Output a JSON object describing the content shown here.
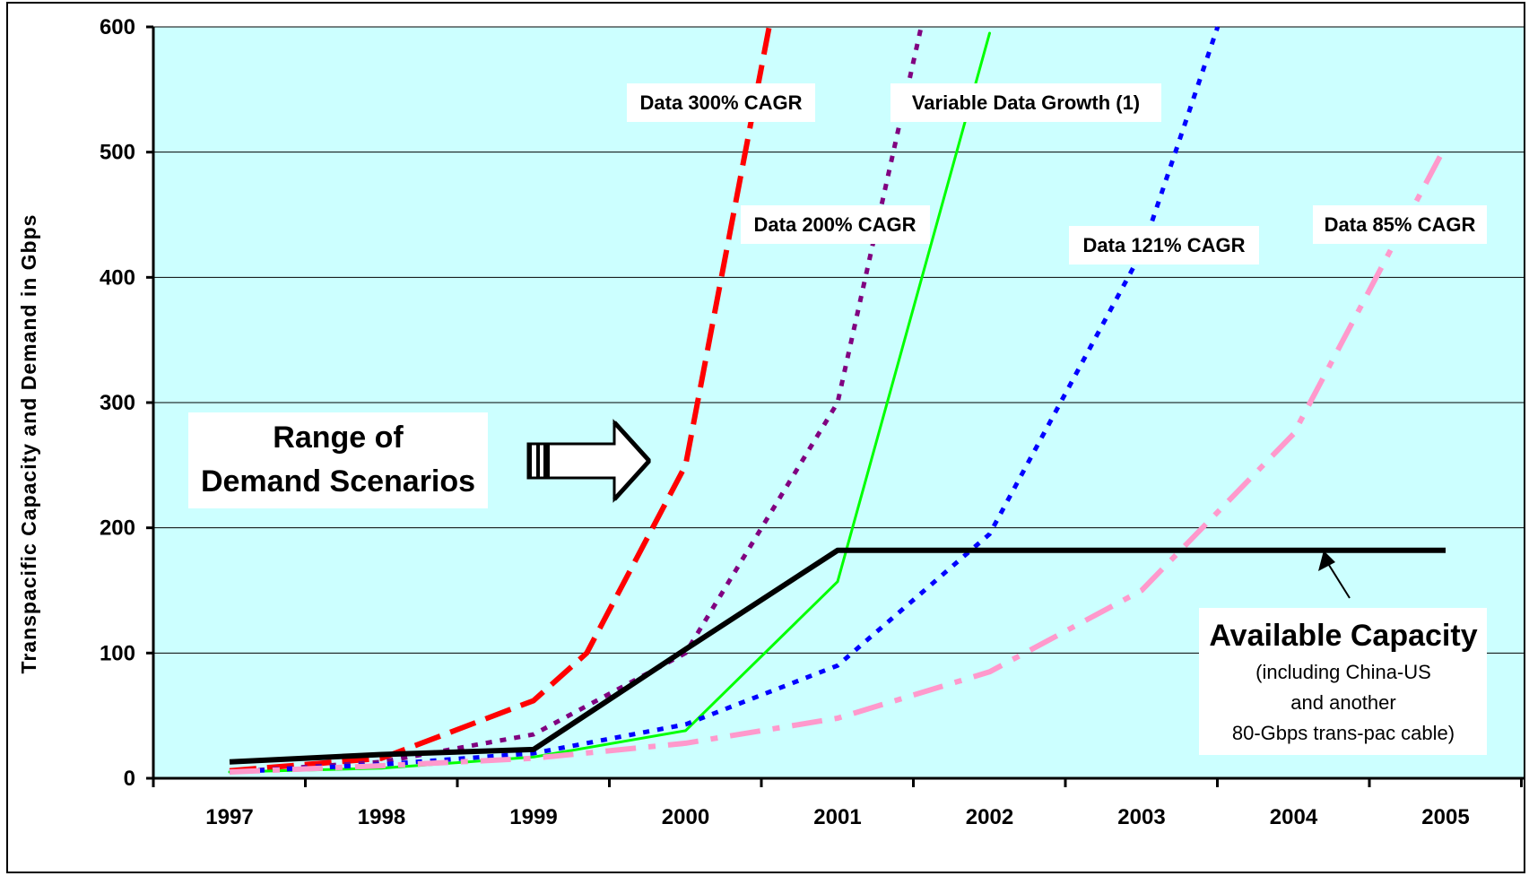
{
  "chart_data": {
    "type": "line",
    "ylabel": "Transpacific Capacity and Demand in Gbps",
    "xlabel": "",
    "x": [
      "1997",
      "1998",
      "1999",
      "2000",
      "2001",
      "2002",
      "2003",
      "2004",
      "2005"
    ],
    "ylim": [
      0,
      600
    ],
    "yticks": [
      0,
      100,
      200,
      300,
      400,
      500,
      600
    ],
    "grid": true,
    "colors": {
      "plot_background": "#ccffff",
      "data_300": "#ff0000",
      "data_200": "#800080",
      "variable": "#00ff00",
      "data_121": "#0000ff",
      "data_85": "#ff99cc",
      "capacity": "#000000"
    },
    "series": [
      {
        "key": "data_300",
        "name": "Data 300% CAGR",
        "style": "dashed",
        "x": [
          1997,
          1998,
          1999,
          1999.35,
          2000,
          2000.55
        ],
        "values": [
          6,
          16,
          62,
          100,
          250,
          600
        ]
      },
      {
        "key": "data_200",
        "name": "Data 200% CAGR",
        "style": "dotted",
        "x": [
          1997,
          1998,
          1999,
          2000,
          2001,
          2001.55
        ],
        "values": [
          5,
          13,
          35,
          100,
          300,
          600
        ]
      },
      {
        "key": "variable",
        "name": "Variable Data Growth (1)",
        "style": "solid",
        "x": [
          1997,
          1998,
          1999,
          2000,
          2001,
          2002
        ],
        "values": [
          5,
          8,
          17,
          38,
          157,
          595
        ]
      },
      {
        "key": "data_121",
        "name": "Data 121% CAGR",
        "style": "dotted",
        "x": [
          1997,
          1998,
          1999,
          2000,
          2001,
          2002,
          2003,
          2003.5
        ],
        "values": [
          5,
          11,
          20,
          43,
          90,
          195,
          420,
          600
        ]
      },
      {
        "key": "data_85",
        "name": "Data 85% CAGR",
        "style": "dashdot",
        "x": [
          1997,
          1998,
          1999,
          2000,
          2001,
          2002,
          2003,
          2004,
          2005
        ],
        "values": [
          5,
          10,
          16,
          28,
          48,
          85,
          150,
          275,
          505
        ]
      },
      {
        "key": "capacity",
        "name": "Available Capacity",
        "style": "solid-thick",
        "x": [
          1997,
          1998,
          1999,
          2000,
          2001,
          2002,
          2003,
          2004,
          2005
        ],
        "values": [
          13,
          19,
          23,
          103,
          182,
          182,
          182,
          182,
          182
        ]
      }
    ],
    "annotations": {
      "range_box": {
        "line1": "Range of",
        "line2": "Demand Scenarios"
      },
      "available": {
        "title": "Available Capacity",
        "line1": "(including China-US",
        "line2": "and another",
        "line3": "80-Gbps trans-pac cable)"
      }
    }
  }
}
